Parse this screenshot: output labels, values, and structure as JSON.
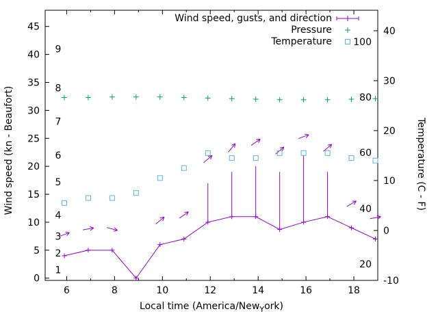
{
  "chart_data": {
    "type": "line",
    "title": "",
    "xlabel": "Local time (America/New_York)",
    "xlabel_display": {
      "pre": "Local time (America/New",
      "sub": "Y",
      "post": "ork)"
    },
    "ylabel_left": "Wind speed (kn - Beaufort)",
    "ylabel_right": "Temperature (C - F)",
    "legend_position": "top-center-inside",
    "grid": false,
    "x_hours": [
      5.9,
      6.9,
      7.9,
      8.9,
      9.9,
      10.9,
      11.9,
      12.9,
      13.9,
      14.9,
      15.9,
      16.9,
      17.9,
      18.9
    ],
    "axes": {
      "x": {
        "min": 5.1,
        "max": 19.0,
        "major_ticks": [
          6,
          8,
          10,
          12,
          14,
          16,
          18
        ],
        "minor_ticks": [
          7,
          9,
          11,
          13,
          15,
          17
        ]
      },
      "left": {
        "min": -0.4,
        "max": 47.9,
        "ticks": [
          0,
          5,
          10,
          15,
          20,
          25,
          30,
          35,
          40,
          45
        ]
      },
      "right": {
        "min": -10,
        "max": 44.1,
        "ticks": [
          -10,
          0,
          10,
          20,
          30,
          40
        ]
      }
    },
    "beaufort_scale_labels": {
      "values": [
        1,
        2,
        3,
        4,
        5,
        6,
        7,
        8,
        9
      ],
      "kn_positions": [
        1.5,
        4.5,
        7.5,
        11.3,
        17.2,
        22,
        28,
        34,
        41
      ]
    },
    "fahrenheit_scale_labels": {
      "values": [
        20,
        40,
        60,
        80,
        100
      ],
      "c_positions": [
        -6.7,
        4.4,
        15.6,
        26.7,
        37.8
      ]
    },
    "series": [
      {
        "name": "Wind speed, gusts, and direction",
        "color": "#9400d3",
        "axis": "left",
        "marker": "plus-with-line",
        "wind_kn": [
          4,
          5,
          5,
          0,
          6,
          7,
          10,
          11,
          11,
          8.7,
          10,
          11,
          9,
          7
        ],
        "gust_kn": [
          4,
          5,
          5,
          0,
          6,
          7,
          17,
          19,
          20,
          19,
          22,
          19,
          9,
          7
        ],
        "direction_arrows": [
          {
            "hour": 5.9,
            "kn": 7.8,
            "angle_deg": 20
          },
          {
            "hour": 6.9,
            "kn": 8.8,
            "angle_deg": 10
          },
          {
            "hour": 7.9,
            "kn": 8.8,
            "angle_deg": -15
          },
          {
            "hour": 9.9,
            "kn": 10.3,
            "angle_deg": 40
          },
          {
            "hour": 10.9,
            "kn": 11.3,
            "angle_deg": 35
          },
          {
            "hour": 11.9,
            "kn": 21.3,
            "angle_deg": 40
          },
          {
            "hour": 12.9,
            "kn": 23.3,
            "angle_deg": 50
          },
          {
            "hour": 13.9,
            "kn": 24.3,
            "angle_deg": 35
          },
          {
            "hour": 14.9,
            "kn": 22.8,
            "angle_deg": 40
          },
          {
            "hour": 15.9,
            "kn": 25.3,
            "angle_deg": 20
          },
          {
            "hour": 16.9,
            "kn": 23.3,
            "angle_deg": 40
          },
          {
            "hour": 17.9,
            "kn": 13.3,
            "angle_deg": 30
          },
          {
            "hour": 18.9,
            "kn": 10.8,
            "angle_deg": 10
          }
        ]
      },
      {
        "name": "Pressure",
        "color": "#009e73",
        "axis": "left-plotted",
        "marker": "plus",
        "plotted_kn": [
          32.3,
          32.3,
          32.4,
          32.4,
          32.4,
          32.3,
          32.2,
          32.1,
          32.0,
          31.9,
          31.9,
          31.9,
          32.0,
          32.1
        ]
      },
      {
        "name": "Temperature",
        "color": "#56b4e9",
        "axis": "right",
        "marker": "open-square",
        "celsius": [
          5.5,
          6.5,
          6.5,
          7.5,
          10.5,
          12.5,
          15.5,
          14.5,
          14.5,
          15.5,
          15.5,
          15.5,
          14.5,
          14.0
        ]
      }
    ]
  }
}
